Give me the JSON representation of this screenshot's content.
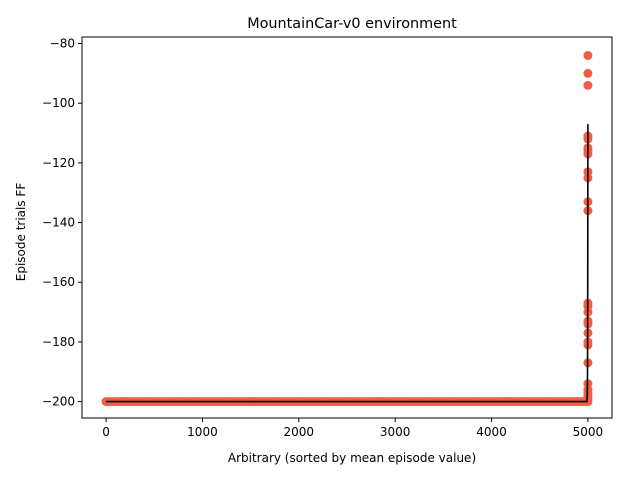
{
  "chart_data": {
    "type": "scatter",
    "title": "MountainCar-v0 environment",
    "xlabel": "Arbitrary (sorted by mean episode value)",
    "ylabel": "Episode trials FF",
    "xlim": [
      -250,
      5250
    ],
    "ylim": [
      -205.5,
      -77.8
    ],
    "xticks": [
      0,
      1000,
      2000,
      3000,
      4000,
      5000
    ],
    "yticks": [
      -200,
      -180,
      -160,
      -140,
      -120,
      -100,
      -80
    ],
    "grid": false,
    "marker_color": "#ee5e44",
    "line_color": "#000000",
    "series": [
      {
        "kind": "scatter",
        "points_note": "dense band",
        "x_range": [
          0,
          5000
        ],
        "y": -200
      },
      {
        "kind": "scatter",
        "x": [
          5000,
          5000,
          5000,
          5000,
          5000,
          5000,
          5000,
          5000,
          5000,
          5000,
          5000,
          5000,
          5000,
          5000,
          5000,
          5000,
          5000,
          5000,
          5000,
          5000,
          5000,
          5000,
          5000,
          5000,
          5000,
          5000
        ],
        "y": [
          -84,
          -90,
          -94,
          -111,
          -112,
          -115,
          -116,
          -117,
          -123,
          -125,
          -133,
          -136,
          -167,
          -168,
          -170,
          -173,
          -174,
          -177,
          -180,
          -181,
          -187,
          -194,
          -196,
          -197,
          -198,
          -199
        ]
      },
      {
        "kind": "line",
        "x": [
          0,
          4990,
          4992,
          4994,
          4996,
          4998,
          5000
        ],
        "y": [
          -200,
          -200,
          -199,
          -197,
          -190,
          -160,
          -107
        ]
      }
    ]
  }
}
